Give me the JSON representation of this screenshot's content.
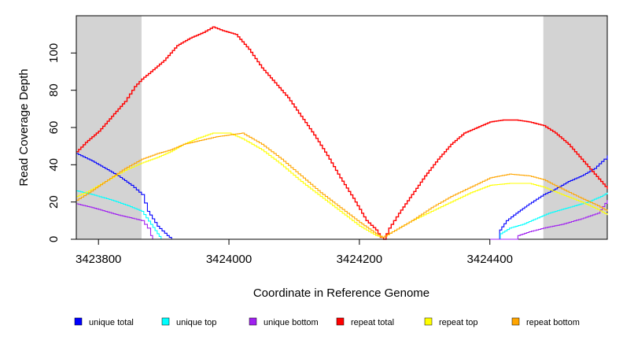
{
  "chart_data": {
    "type": "line",
    "title": "",
    "xlabel": "Coordinate in Reference Genome",
    "ylabel": "Read Coverage Depth",
    "xlim": [
      3423766,
      3424580
    ],
    "ylim": [
      0,
      120
    ],
    "x_ticks": [
      3423800,
      3424000,
      3424200,
      3424400
    ],
    "x_tick_labels": [
      "3423800",
      "3424000",
      "3424200",
      "3424400"
    ],
    "y_ticks": [
      0,
      20,
      40,
      60,
      80,
      100
    ],
    "y_tick_labels": [
      "0",
      "20",
      "40",
      "60",
      "80",
      "100"
    ],
    "shaded_regions": [
      [
        3423766,
        3423866
      ],
      [
        3424482,
        3424580
      ]
    ],
    "legend_position": "bottom",
    "series": [
      {
        "name": "unique total",
        "color": "#0000ff",
        "points": [
          [
            3423766,
            46
          ],
          [
            3423790,
            42
          ],
          [
            3423810,
            38
          ],
          [
            3423830,
            34
          ],
          [
            3423850,
            29
          ],
          [
            3423866,
            24
          ],
          [
            3423875,
            15
          ],
          [
            3423890,
            7
          ],
          [
            3423905,
            2
          ],
          [
            3423912,
            0
          ],
          [
            3424412,
            0
          ],
          [
            3424415,
            5
          ],
          [
            3424425,
            10
          ],
          [
            3424440,
            14
          ],
          [
            3424460,
            19
          ],
          [
            3424482,
            24
          ],
          [
            3424500,
            27
          ],
          [
            3424520,
            31
          ],
          [
            3424540,
            34
          ],
          [
            3424560,
            38
          ],
          [
            3424575,
            43
          ],
          [
            3424580,
            45
          ]
        ]
      },
      {
        "name": "unique top",
        "color": "#00ffff",
        "points": [
          [
            3423766,
            26
          ],
          [
            3423790,
            24
          ],
          [
            3423820,
            21
          ],
          [
            3423845,
            18
          ],
          [
            3423866,
            15
          ],
          [
            3423880,
            8
          ],
          [
            3423890,
            3
          ],
          [
            3423896,
            0
          ],
          [
            3424412,
            0
          ],
          [
            3424416,
            3
          ],
          [
            3424430,
            6
          ],
          [
            3424450,
            8
          ],
          [
            3424470,
            11
          ],
          [
            3424490,
            14
          ],
          [
            3424510,
            16
          ],
          [
            3424530,
            18
          ],
          [
            3424550,
            20
          ],
          [
            3424570,
            23
          ],
          [
            3424580,
            25
          ]
        ]
      },
      {
        "name": "unique bottom",
        "color": "#a020f0",
        "points": [
          [
            3423766,
            19
          ],
          [
            3423790,
            17
          ],
          [
            3423810,
            15
          ],
          [
            3423830,
            13
          ],
          [
            3423855,
            11
          ],
          [
            3423866,
            10
          ],
          [
            3423875,
            6
          ],
          [
            3423880,
            2
          ],
          [
            3423883,
            0
          ],
          [
            3424440,
            0
          ],
          [
            3424443,
            2
          ],
          [
            3424460,
            4
          ],
          [
            3424482,
            6
          ],
          [
            3424510,
            8
          ],
          [
            3424540,
            11
          ],
          [
            3424565,
            14
          ],
          [
            3424580,
            21
          ]
        ]
      },
      {
        "name": "repeat total",
        "color": "#ff0000",
        "points": [
          [
            3423766,
            47
          ],
          [
            3423780,
            52
          ],
          [
            3423800,
            58
          ],
          [
            3423820,
            66
          ],
          [
            3423840,
            74
          ],
          [
            3423855,
            82
          ],
          [
            3423866,
            86
          ],
          [
            3423880,
            90
          ],
          [
            3423900,
            96
          ],
          [
            3423920,
            104
          ],
          [
            3423940,
            108
          ],
          [
            3423960,
            111
          ],
          [
            3423975,
            114
          ],
          [
            3423990,
            112
          ],
          [
            3424010,
            110
          ],
          [
            3424030,
            102
          ],
          [
            3424050,
            92
          ],
          [
            3424070,
            84
          ],
          [
            3424090,
            76
          ],
          [
            3424110,
            66
          ],
          [
            3424130,
            56
          ],
          [
            3424150,
            45
          ],
          [
            3424170,
            33
          ],
          [
            3424190,
            22
          ],
          [
            3424210,
            10
          ],
          [
            3424225,
            5
          ],
          [
            3424232,
            1
          ],
          [
            3424237,
            0
          ],
          [
            3424245,
            6
          ],
          [
            3424260,
            14
          ],
          [
            3424280,
            24
          ],
          [
            3424300,
            34
          ],
          [
            3424320,
            43
          ],
          [
            3424340,
            51
          ],
          [
            3424360,
            57
          ],
          [
            3424380,
            60
          ],
          [
            3424400,
            63
          ],
          [
            3424420,
            64
          ],
          [
            3424440,
            64
          ],
          [
            3424460,
            63
          ],
          [
            3424482,
            61
          ],
          [
            3424500,
            57
          ],
          [
            3424520,
            51
          ],
          [
            3424540,
            43
          ],
          [
            3424560,
            35
          ],
          [
            3424580,
            27
          ]
        ]
      },
      {
        "name": "repeat top",
        "color": "#ffff00",
        "points": [
          [
            3423766,
            23
          ],
          [
            3423785,
            26
          ],
          [
            3423810,
            31
          ],
          [
            3423840,
            37
          ],
          [
            3423866,
            41
          ],
          [
            3423890,
            44
          ],
          [
            3423910,
            47
          ],
          [
            3423930,
            51
          ],
          [
            3423950,
            54
          ],
          [
            3423975,
            57
          ],
          [
            3424000,
            57
          ],
          [
            3424020,
            54
          ],
          [
            3424050,
            48
          ],
          [
            3424080,
            40
          ],
          [
            3424110,
            31
          ],
          [
            3424140,
            23
          ],
          [
            3424170,
            15
          ],
          [
            3424200,
            7
          ],
          [
            3424225,
            2
          ],
          [
            3424235,
            1
          ],
          [
            3424250,
            4
          ],
          [
            3424280,
            10
          ],
          [
            3424310,
            15
          ],
          [
            3424340,
            20
          ],
          [
            3424370,
            25
          ],
          [
            3424400,
            29
          ],
          [
            3424430,
            30
          ],
          [
            3424460,
            30
          ],
          [
            3424482,
            28
          ],
          [
            3424510,
            24
          ],
          [
            3424540,
            20
          ],
          [
            3424565,
            16
          ],
          [
            3424580,
            13
          ]
        ]
      },
      {
        "name": "repeat bottom",
        "color": "#ffa500",
        "points": [
          [
            3423766,
            21
          ],
          [
            3423785,
            25
          ],
          [
            3423810,
            31
          ],
          [
            3423840,
            38
          ],
          [
            3423866,
            43
          ],
          [
            3423890,
            46
          ],
          [
            3423910,
            48
          ],
          [
            3423930,
            51
          ],
          [
            3423955,
            53
          ],
          [
            3423980,
            55
          ],
          [
            3424000,
            56
          ],
          [
            3424020,
            57
          ],
          [
            3424050,
            51
          ],
          [
            3424080,
            43
          ],
          [
            3424110,
            34
          ],
          [
            3424140,
            25
          ],
          [
            3424170,
            17
          ],
          [
            3424200,
            9
          ],
          [
            3424225,
            3
          ],
          [
            3424235,
            1
          ],
          [
            3424250,
            4
          ],
          [
            3424280,
            10
          ],
          [
            3424310,
            17
          ],
          [
            3424340,
            23
          ],
          [
            3424370,
            28
          ],
          [
            3424400,
            33
          ],
          [
            3424430,
            35
          ],
          [
            3424460,
            34
          ],
          [
            3424482,
            32
          ],
          [
            3424510,
            27
          ],
          [
            3424540,
            22
          ],
          [
            3424565,
            18
          ],
          [
            3424580,
            15
          ]
        ]
      }
    ]
  }
}
